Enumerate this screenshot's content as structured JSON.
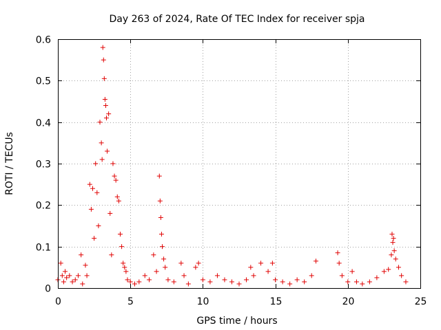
{
  "chart_data": {
    "type": "scatter",
    "title": "Day 263 of 2024, Rate Of TEC Index for receiver spja",
    "xlabel": "GPS time / hours",
    "ylabel": "ROTI / TECUs",
    "xlim": [
      0,
      25
    ],
    "ylim": [
      0,
      0.6
    ],
    "xticks": [
      "0",
      "5",
      "10",
      "15",
      "20",
      "25"
    ],
    "yticks": [
      "0",
      "0.1",
      "0.2",
      "0.3",
      "0.4",
      "0.5",
      "0.6"
    ],
    "grid": true,
    "marker": "+",
    "series_color": "#e00000",
    "series": [
      {
        "name": "ROTI",
        "x": [
          0.0,
          0.2,
          0.3,
          0.4,
          0.5,
          0.6,
          0.8,
          1.0,
          1.2,
          1.4,
          1.6,
          1.7,
          1.9,
          2.0,
          2.2,
          2.3,
          2.4,
          2.5,
          2.6,
          2.7,
          2.8,
          2.9,
          3.0,
          3.05,
          3.1,
          3.15,
          3.2,
          3.25,
          3.3,
          3.35,
          3.4,
          3.5,
          3.6,
          3.7,
          3.8,
          3.9,
          4.0,
          4.1,
          4.2,
          4.3,
          4.4,
          4.5,
          4.6,
          4.7,
          4.8,
          5.0,
          5.3,
          5.6,
          6.0,
          6.3,
          6.6,
          6.8,
          7.0,
          7.05,
          7.1,
          7.15,
          7.2,
          7.3,
          7.4,
          7.6,
          8.0,
          8.5,
          8.7,
          9.0,
          9.5,
          9.7,
          10.0,
          10.5,
          11.0,
          11.5,
          12.0,
          12.5,
          13.0,
          13.3,
          13.5,
          14.0,
          14.5,
          14.8,
          15.0,
          15.5,
          16.0,
          16.5,
          17.0,
          17.5,
          17.8,
          19.3,
          19.4,
          19.6,
          20.0,
          20.3,
          20.6,
          21.0,
          21.5,
          22.0,
          22.5,
          22.8,
          23.0,
          23.05,
          23.1,
          23.15,
          23.2,
          23.3,
          23.5,
          23.7,
          24.0
        ],
        "y": [
          0.02,
          0.06,
          0.03,
          0.015,
          0.04,
          0.025,
          0.03,
          0.015,
          0.02,
          0.03,
          0.08,
          0.01,
          0.055,
          0.03,
          0.25,
          0.19,
          0.24,
          0.12,
          0.3,
          0.23,
          0.15,
          0.4,
          0.35,
          0.31,
          0.58,
          0.55,
          0.505,
          0.455,
          0.44,
          0.41,
          0.33,
          0.42,
          0.18,
          0.08,
          0.3,
          0.27,
          0.26,
          0.22,
          0.21,
          0.13,
          0.1,
          0.06,
          0.05,
          0.04,
          0.02,
          0.015,
          0.01,
          0.015,
          0.03,
          0.02,
          0.08,
          0.04,
          0.27,
          0.21,
          0.17,
          0.13,
          0.1,
          0.07,
          0.05,
          0.02,
          0.015,
          0.06,
          0.03,
          0.01,
          0.05,
          0.06,
          0.02,
          0.015,
          0.03,
          0.02,
          0.015,
          0.01,
          0.02,
          0.05,
          0.03,
          0.06,
          0.04,
          0.06,
          0.02,
          0.015,
          0.01,
          0.02,
          0.015,
          0.03,
          0.065,
          0.085,
          0.06,
          0.03,
          0.015,
          0.04,
          0.015,
          0.01,
          0.015,
          0.025,
          0.04,
          0.045,
          0.08,
          0.13,
          0.11,
          0.12,
          0.09,
          0.07,
          0.05,
          0.03,
          0.015
        ]
      }
    ]
  }
}
